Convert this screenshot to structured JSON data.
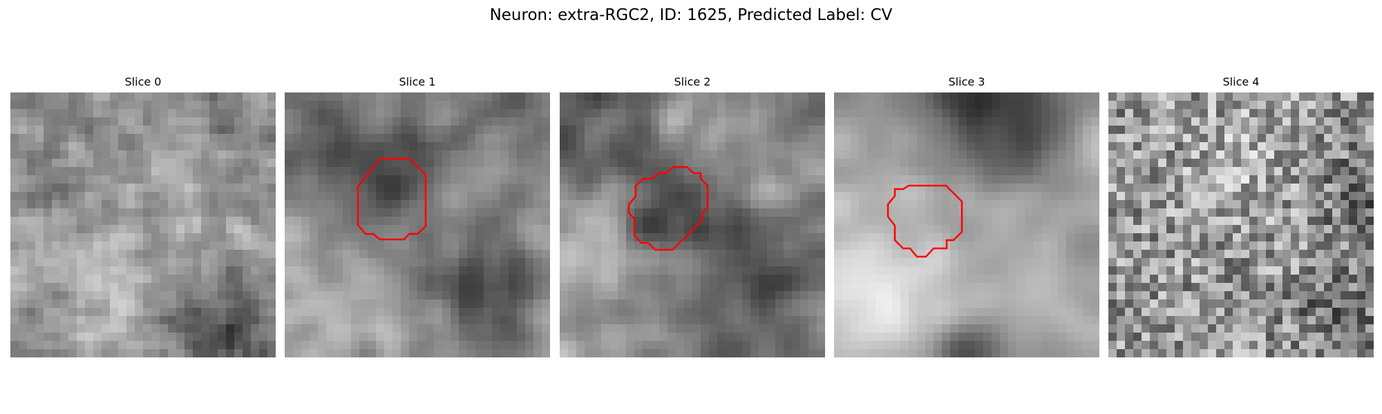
{
  "figure": {
    "title": "Neuron: extra-RGC2, ID: 1625, Predicted Label: CV"
  },
  "slices": [
    {
      "title": "Slice 0",
      "has_outline": false
    },
    {
      "title": "Slice 1",
      "has_outline": true
    },
    {
      "title": "Slice 2",
      "has_outline": true
    },
    {
      "title": "Slice 3",
      "has_outline": true
    },
    {
      "title": "Slice 4",
      "has_outline": false
    }
  ],
  "style": {
    "outline_color": "#ff0000",
    "colormap": "gray"
  }
}
